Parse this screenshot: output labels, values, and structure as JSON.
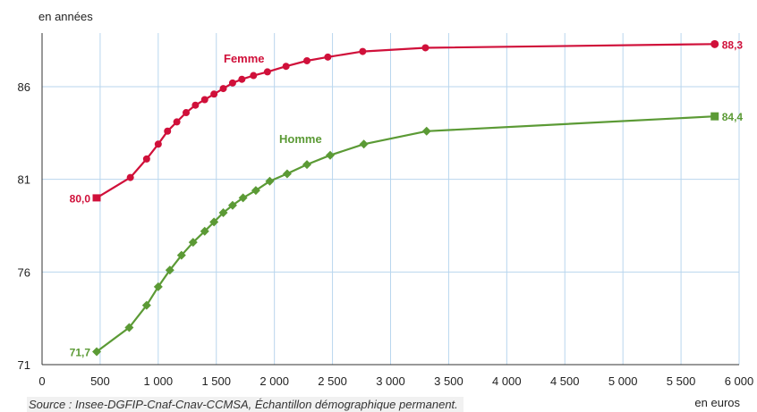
{
  "chart_data": {
    "type": "line",
    "ylabel": "en années",
    "xlabel": "en euros",
    "xlim": [
      0,
      6000
    ],
    "ylim": [
      71,
      89
    ],
    "x_ticks": [
      {
        "value": 0,
        "label": "0"
      },
      {
        "value": 500,
        "label": "500"
      },
      {
        "value": 1000,
        "label": "1 000"
      },
      {
        "value": 1500,
        "label": "1 500"
      },
      {
        "value": 2000,
        "label": "2 000"
      },
      {
        "value": 2500,
        "label": "2 500"
      },
      {
        "value": 3000,
        "label": "3 000"
      },
      {
        "value": 3500,
        "label": "3 500"
      },
      {
        "value": 4000,
        "label": "4 000"
      },
      {
        "value": 4500,
        "label": "4 500"
      },
      {
        "value": 5000,
        "label": "5 000"
      },
      {
        "value": 5500,
        "label": "5 500"
      },
      {
        "value": 6000,
        "label": "6 000"
      }
    ],
    "y_ticks": [
      {
        "value": 71,
        "label": "71"
      },
      {
        "value": 76,
        "label": "76"
      },
      {
        "value": 81,
        "label": "81"
      },
      {
        "value": 86,
        "label": "86"
      }
    ],
    "grid": true,
    "series": [
      {
        "name": "Femme",
        "color": "#d0103a",
        "marker": "circle",
        "points": [
          [
            470,
            80.0
          ],
          [
            760,
            81.1
          ],
          [
            900,
            82.1
          ],
          [
            1000,
            82.9
          ],
          [
            1080,
            83.6
          ],
          [
            1160,
            84.1
          ],
          [
            1240,
            84.6
          ],
          [
            1320,
            85.0
          ],
          [
            1400,
            85.3
          ],
          [
            1480,
            85.6
          ],
          [
            1560,
            85.9
          ],
          [
            1640,
            86.2
          ],
          [
            1720,
            86.4
          ],
          [
            1820,
            86.6
          ],
          [
            1940,
            86.8
          ],
          [
            2100,
            87.1
          ],
          [
            2280,
            87.4
          ],
          [
            2460,
            87.6
          ],
          [
            2760,
            87.9
          ],
          [
            3300,
            88.1
          ],
          [
            5790,
            88.3
          ]
        ],
        "first_label": "80,0",
        "last_label": "88,3"
      },
      {
        "name": "Homme",
        "color": "#5b9a35",
        "marker": "diamond",
        "points": [
          [
            470,
            71.7
          ],
          [
            750,
            73.0
          ],
          [
            900,
            74.2
          ],
          [
            1000,
            75.2
          ],
          [
            1100,
            76.1
          ],
          [
            1200,
            76.9
          ],
          [
            1300,
            77.6
          ],
          [
            1400,
            78.2
          ],
          [
            1480,
            78.7
          ],
          [
            1560,
            79.2
          ],
          [
            1640,
            79.6
          ],
          [
            1730,
            80.0
          ],
          [
            1840,
            80.4
          ],
          [
            1960,
            80.9
          ],
          [
            2110,
            81.3
          ],
          [
            2280,
            81.8
          ],
          [
            2480,
            82.3
          ],
          [
            2770,
            82.9
          ],
          [
            3310,
            83.6
          ],
          [
            5790,
            84.4
          ]
        ],
        "first_label": "71,7",
        "last_label": "84,4"
      }
    ],
    "source": "Source : Insee-DGFIP-Cnaf-Cnav-CCMSA, Échantillon démographique permanent."
  }
}
